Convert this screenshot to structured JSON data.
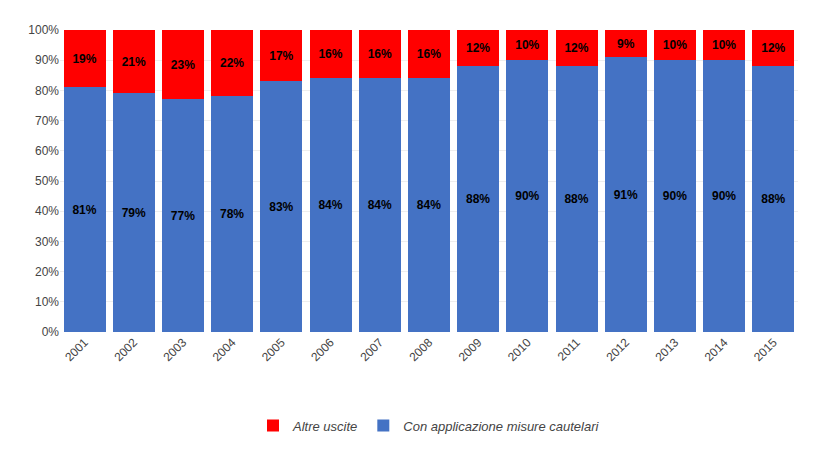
{
  "chart_data": {
    "type": "bar",
    "stacked": true,
    "categories": [
      "2001",
      "2002",
      "2003",
      "2004",
      "2005",
      "2006",
      "2007",
      "2008",
      "2009",
      "2010",
      "2011",
      "2012",
      "2013",
      "2014",
      "2015"
    ],
    "series": [
      {
        "name": "Con applicazione misure cautelari",
        "color": "#4472C4",
        "values": [
          81,
          79,
          77,
          78,
          83,
          84,
          84,
          84,
          88,
          90,
          88,
          91,
          90,
          90,
          88
        ],
        "value_labels": [
          "81%",
          "79%",
          "77%",
          "78%",
          "83%",
          "84%",
          "84%",
          "84%",
          "88%",
          "90%",
          "88%",
          "91%",
          "90%",
          "90%",
          "88%"
        ]
      },
      {
        "name": "Altre uscite",
        "color": "#FF0000",
        "values": [
          19,
          21,
          23,
          22,
          17,
          16,
          16,
          16,
          12,
          10,
          12,
          9,
          10,
          10,
          12
        ],
        "value_labels": [
          "19%",
          "21%",
          "23%",
          "22%",
          "17%",
          "16%",
          "16%",
          "16%",
          "12%",
          "10%",
          "12%",
          "9%",
          "10%",
          "10%",
          "12%"
        ]
      }
    ],
    "ylim": [
      0,
      100
    ],
    "yticks": [
      {
        "value": 0,
        "label": "0%"
      },
      {
        "value": 10,
        "label": "10%"
      },
      {
        "value": 20,
        "label": "20%"
      },
      {
        "value": 30,
        "label": "30%"
      },
      {
        "value": 40,
        "label": "40%"
      },
      {
        "value": 50,
        "label": "50%"
      },
      {
        "value": 60,
        "label": "60%"
      },
      {
        "value": 70,
        "label": "70%"
      },
      {
        "value": 80,
        "label": "80%"
      },
      {
        "value": 90,
        "label": "90%"
      },
      {
        "value": 100,
        "label": "100%"
      }
    ],
    "grid": true,
    "data_labels": true,
    "legend": "bottom"
  }
}
